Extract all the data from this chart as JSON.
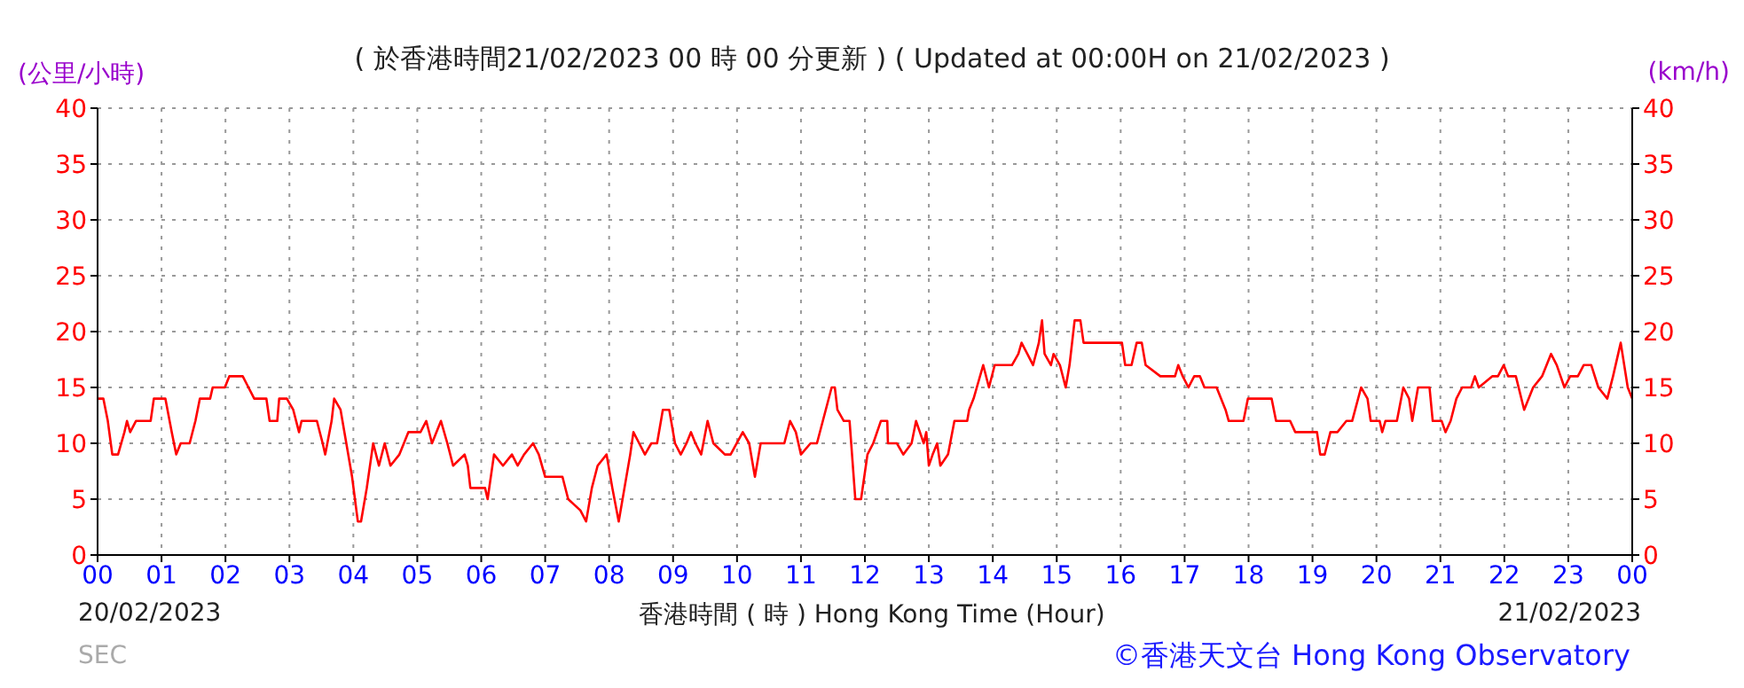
{
  "chart_data": {
    "type": "line",
    "title": "( 於香港時間21/02/2023 00 時 00 分更新 ) ( Updated at 00:00H on 21/02/2023 )",
    "ylabel": "(公里/小時)",
    "y2label": "(km/h)",
    "xlabel": "香港時間 ( 時 )  Hong Kong Time (Hour)",
    "annotations": [
      "20/02/2023",
      "21/02/2023",
      "SEC",
      "©香港天文台 Hong Kong Observatory"
    ],
    "x": [
      0,
      0.09,
      0.16,
      0.23,
      0.32,
      0.42,
      0.46,
      0.51,
      0.6,
      0.83,
      0.88,
      1.06,
      1.16,
      1.23,
      1.3,
      1.44,
      1.53,
      1.6,
      1.76,
      1.8,
      1.99,
      2.06,
      2.27,
      2.36,
      2.45,
      2.64,
      2.69,
      2.81,
      2.84,
      2.96,
      3.06,
      3.15,
      3.19,
      3.43,
      3.52,
      3.56,
      3.66,
      3.7,
      3.8,
      3.89,
      3.98,
      4.07,
      4.12,
      4.21,
      4.31,
      4.4,
      4.49,
      4.58,
      4.72,
      4.86,
      5.05,
      5.14,
      5.23,
      5.37,
      5.47,
      5.56,
      5.74,
      5.79,
      5.83,
      6.06,
      6.1,
      6.2,
      6.34,
      6.48,
      6.57,
      6.67,
      6.81,
      6.9,
      7.0,
      7.27,
      7.36,
      7.55,
      7.64,
      7.73,
      7.82,
      7.96,
      8.05,
      8.15,
      8.24,
      8.33,
      8.38,
      8.47,
      8.56,
      8.66,
      8.75,
      8.84,
      8.94,
      9.03,
      9.12,
      9.21,
      9.28,
      9.35,
      9.44,
      9.54,
      9.63,
      9.81,
      9.9,
      10.09,
      10.19,
      10.28,
      10.37,
      10.74,
      10.83,
      10.92,
      11.0,
      11.15,
      11.25,
      11.48,
      11.53,
      11.57,
      11.67,
      11.76,
      11.85,
      11.94,
      12.04,
      12.13,
      12.25,
      12.35,
      12.36,
      12.5,
      12.6,
      12.73,
      12.8,
      12.92,
      12.96,
      13.0,
      13.06,
      13.13,
      13.18,
      13.3,
      13.4,
      13.6,
      13.63,
      13.7,
      13.75,
      13.85,
      13.94,
      14.03,
      14.3,
      14.4,
      14.45,
      14.54,
      14.63,
      14.72,
      14.77,
      14.81,
      14.91,
      14.95,
      15.05,
      15.14,
      15.2,
      15.28,
      15.37,
      15.42,
      16.02,
      16.07,
      16.17,
      16.25,
      16.33,
      16.39,
      16.62,
      16.85,
      16.9,
      16.97,
      17.06,
      17.15,
      17.24,
      17.31,
      17.5,
      17.64,
      17.69,
      17.92,
      17.99,
      18.36,
      18.43,
      18.65,
      18.73,
      19.07,
      19.12,
      19.19,
      19.28,
      19.39,
      19.53,
      19.62,
      19.76,
      19.86,
      19.91,
      20.05,
      20.09,
      20.14,
      20.32,
      20.42,
      20.51,
      20.56,
      20.65,
      20.83,
      20.88,
      21.02,
      21.08,
      21.16,
      21.25,
      21.34,
      21.48,
      21.54,
      21.6,
      21.81,
      21.9,
      21.99,
      22.06,
      22.18,
      22.31,
      22.45,
      22.59,
      22.73,
      22.82,
      22.94,
      23.03,
      23.15,
      23.24,
      23.36,
      23.47,
      23.61,
      23.7,
      23.82,
      23.93,
      24.0
    ],
    "series": [
      {
        "color": "#ff0000",
        "values": [
          14,
          14,
          12,
          9,
          9,
          11,
          12,
          11,
          12,
          12,
          14,
          14,
          11,
          9,
          10,
          10,
          12,
          14,
          14,
          15,
          15,
          16,
          16,
          15,
          14,
          14,
          12,
          12,
          14,
          14,
          13,
          11,
          12,
          12,
          10,
          9,
          12,
          14,
          13,
          10,
          7,
          3,
          3,
          6,
          10,
          8,
          10,
          8,
          9,
          11,
          11,
          12,
          10,
          12,
          10,
          8,
          9,
          8,
          6,
          6,
          5,
          9,
          8,
          9,
          8,
          9,
          10,
          9,
          7,
          7,
          5,
          4,
          3,
          6,
          8,
          9,
          6,
          3,
          6,
          9,
          11,
          10,
          9,
          10,
          10,
          13,
          13,
          10,
          9,
          10,
          11,
          10,
          9,
          12,
          10,
          9,
          9,
          11,
          10,
          7,
          10,
          10,
          12,
          11,
          9,
          10,
          10,
          15,
          15,
          13,
          12,
          12,
          5,
          5,
          9,
          10,
          12,
          12,
          10,
          10,
          9,
          10,
          12,
          10,
          11,
          8,
          9,
          10,
          8,
          9,
          12,
          12,
          13,
          14,
          15,
          17,
          15,
          17,
          17,
          18,
          19,
          18,
          17,
          19,
          21,
          18,
          17,
          18,
          17,
          15,
          17,
          21,
          21,
          19,
          19,
          17,
          17,
          19,
          19,
          17,
          16,
          16,
          17,
          16,
          15,
          16,
          16,
          15,
          15,
          13,
          12,
          12,
          14,
          14,
          12,
          12,
          11,
          11,
          9,
          9,
          11,
          11,
          12,
          12,
          15,
          14,
          12,
          12,
          11,
          12,
          12,
          15,
          14,
          12,
          15,
          15,
          12,
          12,
          11,
          12,
          14,
          15,
          15,
          16,
          15,
          16,
          16,
          17,
          16,
          16,
          13,
          15,
          16,
          18,
          17,
          15,
          16,
          16,
          17,
          17,
          15,
          14,
          16,
          19,
          15,
          14
        ]
      }
    ],
    "xlim": [
      0,
      24
    ],
    "xticks": [
      {
        "value": 0,
        "label": "00"
      },
      {
        "value": 1,
        "label": "01"
      },
      {
        "value": 2,
        "label": "02"
      },
      {
        "value": 3,
        "label": "03"
      },
      {
        "value": 4,
        "label": "04"
      },
      {
        "value": 5,
        "label": "05"
      },
      {
        "value": 6,
        "label": "06"
      },
      {
        "value": 7,
        "label": "07"
      },
      {
        "value": 8,
        "label": "08"
      },
      {
        "value": 9,
        "label": "09"
      },
      {
        "value": 10,
        "label": "10"
      },
      {
        "value": 11,
        "label": "11"
      },
      {
        "value": 12,
        "label": "12"
      },
      {
        "value": 13,
        "label": "13"
      },
      {
        "value": 14,
        "label": "14"
      },
      {
        "value": 15,
        "label": "15"
      },
      {
        "value": 16,
        "label": "16"
      },
      {
        "value": 17,
        "label": "17"
      },
      {
        "value": 18,
        "label": "18"
      },
      {
        "value": 19,
        "label": "19"
      },
      {
        "value": 20,
        "label": "20"
      },
      {
        "value": 21,
        "label": "21"
      },
      {
        "value": 22,
        "label": "22"
      },
      {
        "value": 23,
        "label": "23"
      },
      {
        "value": 24,
        "label": "00"
      }
    ],
    "ylim": [
      0,
      40
    ],
    "yticks": [
      0,
      5,
      10,
      15,
      20,
      25,
      30,
      35,
      40
    ],
    "y2lim": [
      0,
      40
    ],
    "y2ticks": [
      0,
      5,
      10,
      15,
      20,
      25,
      30,
      35,
      40
    ],
    "grid": true
  }
}
